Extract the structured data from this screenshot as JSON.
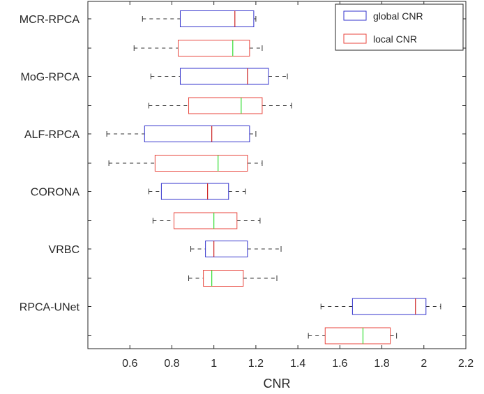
{
  "chart_data": {
    "type": "boxplot",
    "orientation": "horizontal",
    "xlabel": "CNR",
    "ylabel": "",
    "xlim": [
      0.4,
      2.2
    ],
    "xticks": [
      0.6,
      0.8,
      1,
      1.2,
      1.4,
      1.6,
      1.8,
      2,
      2.2
    ],
    "xtick_labels": [
      "0.6",
      "0.8",
      "1",
      "1.2",
      "1.4",
      "1.6",
      "1.8",
      "2",
      "2.2"
    ],
    "grid": false,
    "legend_position": "top-right",
    "methods": [
      "MCR-RPCA",
      "MoG-RPCA",
      "ALF-RPCA",
      "CORONA",
      "VRBC",
      "RPCA-UNet"
    ],
    "series": [
      {
        "name": "global CNR",
        "box_color": "#3333cc",
        "median_color": "#cc2222",
        "boxes": [
          {
            "min": 0.66,
            "q1": 0.84,
            "median": 1.1,
            "q3": 1.19,
            "max": 1.2
          },
          {
            "min": 0.7,
            "q1": 0.84,
            "median": 1.16,
            "q3": 1.26,
            "max": 1.35
          },
          {
            "min": 0.49,
            "q1": 0.67,
            "median": 0.99,
            "q3": 1.17,
            "max": 1.2
          },
          {
            "min": 0.69,
            "q1": 0.75,
            "median": 0.97,
            "q3": 1.07,
            "max": 1.15
          },
          {
            "min": 0.89,
            "q1": 0.96,
            "median": 1.0,
            "q3": 1.16,
            "max": 1.32
          },
          {
            "min": 1.51,
            "q1": 1.66,
            "median": 1.96,
            "q3": 2.01,
            "max": 2.08
          }
        ]
      },
      {
        "name": "local CNR",
        "box_color": "#e8453c",
        "median_color": "#33dd33",
        "boxes": [
          {
            "min": 0.62,
            "q1": 0.83,
            "median": 1.09,
            "q3": 1.17,
            "max": 1.23
          },
          {
            "min": 0.69,
            "q1": 0.88,
            "median": 1.13,
            "q3": 1.23,
            "max": 1.37
          },
          {
            "min": 0.5,
            "q1": 0.72,
            "median": 1.02,
            "q3": 1.16,
            "max": 1.23
          },
          {
            "min": 0.71,
            "q1": 0.81,
            "median": 1.0,
            "q3": 1.11,
            "max": 1.22
          },
          {
            "min": 0.88,
            "q1": 0.95,
            "median": 0.99,
            "q3": 1.14,
            "max": 1.3
          },
          {
            "min": 1.45,
            "q1": 1.53,
            "median": 1.71,
            "q3": 1.84,
            "max": 1.87
          }
        ]
      }
    ]
  }
}
